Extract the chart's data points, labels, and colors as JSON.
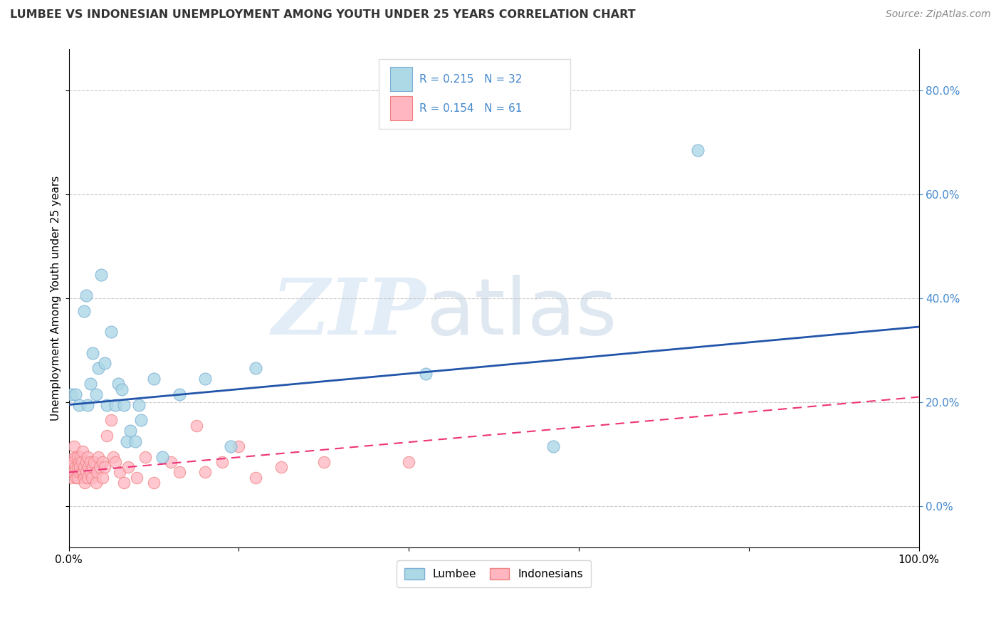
{
  "title": "LUMBEE VS INDONESIAN UNEMPLOYMENT AMONG YOUTH UNDER 25 YEARS CORRELATION CHART",
  "source": "Source: ZipAtlas.com",
  "ylabel": "Unemployment Among Youth under 25 years",
  "xlim": [
    0.0,
    1.0
  ],
  "ylim": [
    -0.08,
    0.88
  ],
  "y_tick_vals": [
    0.0,
    0.2,
    0.4,
    0.6,
    0.8
  ],
  "x_ticks": [
    0.0,
    0.2,
    0.4,
    0.6,
    0.8,
    1.0
  ],
  "lumbee_color_edge": "#7BAFD4",
  "lumbee_color_fill": "#ADD8E6",
  "indonesian_color_edge": "#F08080",
  "indonesian_color_fill": "#FFB6C1",
  "lumbee_R": 0.215,
  "lumbee_N": 32,
  "indonesian_R": 0.154,
  "indonesian_N": 61,
  "lumbee_x": [
    0.003,
    0.008,
    0.012,
    0.018,
    0.02,
    0.022,
    0.025,
    0.028,
    0.032,
    0.035,
    0.038,
    0.042,
    0.045,
    0.05,
    0.055,
    0.058,
    0.062,
    0.065,
    0.068,
    0.072,
    0.078,
    0.082,
    0.085,
    0.1,
    0.11,
    0.13,
    0.16,
    0.19,
    0.22,
    0.42,
    0.57,
    0.74
  ],
  "lumbee_y": [
    0.215,
    0.215,
    0.195,
    0.375,
    0.405,
    0.195,
    0.235,
    0.295,
    0.215,
    0.265,
    0.445,
    0.275,
    0.195,
    0.335,
    0.195,
    0.235,
    0.225,
    0.195,
    0.125,
    0.145,
    0.125,
    0.195,
    0.165,
    0.245,
    0.095,
    0.215,
    0.245,
    0.115,
    0.265,
    0.255,
    0.115,
    0.685
  ],
  "lumbee_line_x": [
    0.0,
    1.0
  ],
  "lumbee_line_y": [
    0.195,
    0.345
  ],
  "indonesian_x": [
    0.002,
    0.003,
    0.004,
    0.005,
    0.005,
    0.006,
    0.007,
    0.008,
    0.008,
    0.009,
    0.01,
    0.01,
    0.01,
    0.012,
    0.012,
    0.013,
    0.014,
    0.015,
    0.015,
    0.016,
    0.017,
    0.018,
    0.018,
    0.019,
    0.02,
    0.02,
    0.022,
    0.022,
    0.023,
    0.025,
    0.025,
    0.027,
    0.028,
    0.03,
    0.032,
    0.033,
    0.035,
    0.036,
    0.04,
    0.04,
    0.042,
    0.045,
    0.05,
    0.052,
    0.055,
    0.06,
    0.065,
    0.07,
    0.08,
    0.09,
    0.1,
    0.12,
    0.13,
    0.15,
    0.16,
    0.18,
    0.2,
    0.22,
    0.25,
    0.3,
    0.4
  ],
  "indonesian_y": [
    0.09,
    0.055,
    0.075,
    0.065,
    0.085,
    0.115,
    0.065,
    0.075,
    0.095,
    0.055,
    0.075,
    0.095,
    0.055,
    0.085,
    0.065,
    0.075,
    0.095,
    0.065,
    0.085,
    0.105,
    0.065,
    0.055,
    0.075,
    0.045,
    0.085,
    0.065,
    0.095,
    0.055,
    0.075,
    0.065,
    0.085,
    0.055,
    0.075,
    0.085,
    0.045,
    0.065,
    0.095,
    0.075,
    0.085,
    0.055,
    0.075,
    0.135,
    0.165,
    0.095,
    0.085,
    0.065,
    0.045,
    0.075,
    0.055,
    0.095,
    0.045,
    0.085,
    0.065,
    0.155,
    0.065,
    0.085,
    0.115,
    0.055,
    0.075,
    0.085,
    0.085
  ],
  "indonesian_line_x": [
    0.0,
    1.0
  ],
  "indonesian_line_y": [
    0.065,
    0.21
  ],
  "watermark_zip": "ZIP",
  "watermark_atlas": "atlas",
  "grid_color": "#CCCCCC",
  "background_color": "#FFFFFF",
  "right_axis_color": "#4488CC",
  "legend_box_color": "#DDDDDD"
}
